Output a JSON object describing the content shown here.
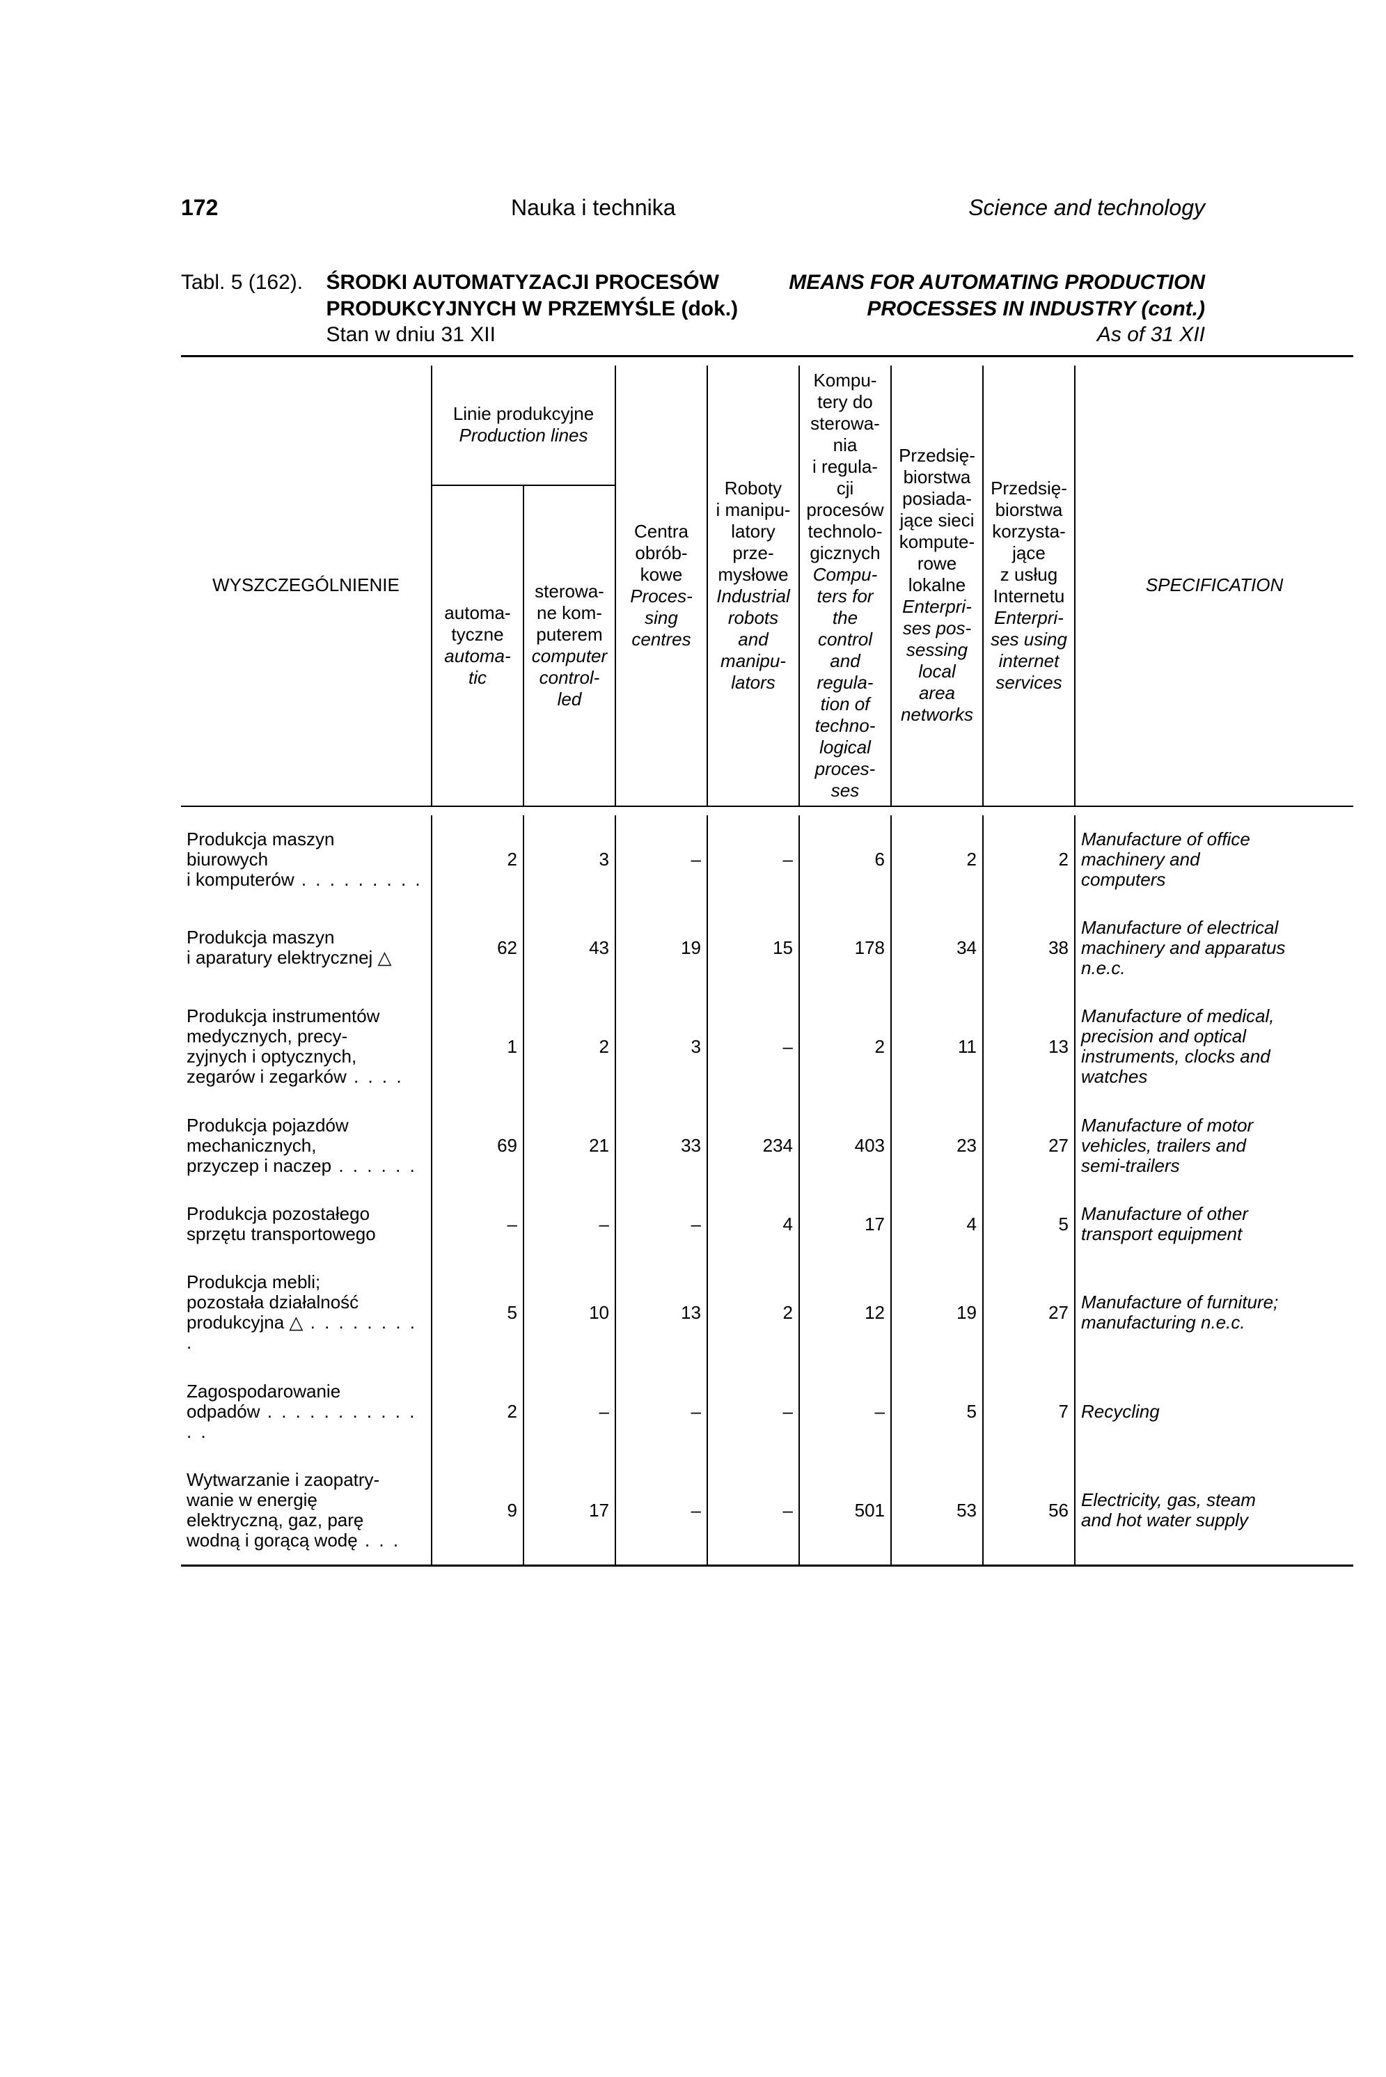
{
  "page": {
    "number": "172",
    "section_pl": "Nauka i technika",
    "section_en": "Science and technology"
  },
  "title": {
    "label": "Tabl. 5 (162).",
    "pl_line1": "ŚRODKI AUTOMATYZACJI PROCESÓW",
    "pl_line2": "PRODUKCYJNYCH W PRZEMYŚLE (dok.)",
    "pl_sub": "Stan w dniu 31 XII",
    "en_line1": "MEANS FOR AUTOMATING PRODUCTION",
    "en_line2": "PROCESSES IN INDUSTRY (cont.)",
    "en_sub": "As of 31 XII"
  },
  "headers": {
    "stub": "WYSZCZEGÓLNIENIE",
    "prod_lines_pl": "Linie produkcyjne",
    "prod_lines_en": "Production lines",
    "c1_pl": "automa-\ntyczne",
    "c1_en": "automa-\ntic",
    "c2_pl": "sterowa-\nne kom-\nputerem",
    "c2_en": "computer\ncontrol-\nled",
    "c3_pl": "Centra\nobrób-\nkowe",
    "c3_en": "Proces-\nsing\ncentres",
    "c4_pl": "Roboty\ni manipu-\nlatory\nprze-\nmysłowe",
    "c4_en": "Industrial\nrobots\nand\nmanipu-\nlators",
    "c5_pl": "Kompu-\ntery do\nsterowa-\nnia\ni regula-\ncji\nprocesów\ntechnolo-\ngicznych",
    "c5_en": "Compu-\nters for\nthe\ncontrol\nand\nregula-\ntion of\ntechno-\nlogical\nproces-\nses",
    "c6_pl": "Przedsię-\nbiorstwa\nposiada-\njące sieci\nkompute-\nrowe\nlokalne",
    "c6_en": "Enterpri-\nses pos-\nsessing\nlocal\narea\nnetworks",
    "c7_pl": "Przedsię-\nbiorstwa\nkorzysta-\njące\nz usług\nInternetu",
    "c7_en": "Enterpri-\nses using\ninternet\nservices",
    "spec": "SPECIFICATION"
  },
  "rows": [
    {
      "pl": "Produkcja maszyn\nbiurowych\ni komputerów",
      "dots": " . . . . . . . . .",
      "v": [
        "2",
        "3",
        "–",
        "–",
        "6",
        "2",
        "2"
      ],
      "en": "Manufacture of office\nmachinery and\ncomputers"
    },
    {
      "pl": "Produkcja maszyn\ni aparatury elektrycznej △",
      "dots": "",
      "v": [
        "62",
        "43",
        "19",
        "15",
        "178",
        "34",
        "38"
      ],
      "en": "Manufacture of electrical\nmachinery and apparatus\nn.e.c."
    },
    {
      "pl": "Produkcja instrumentów\nmedycznych, precy-\nzyjnych i optycznych,\nzegarów i zegarków",
      "dots": " . . . .",
      "v": [
        "1",
        "2",
        "3",
        "–",
        "2",
        "11",
        "13"
      ],
      "en": "Manufacture of medical,\nprecision and optical\ninstruments, clocks and\nwatches"
    },
    {
      "pl": "Produkcja pojazdów\nmechanicznych,\nprzyczep i naczep",
      "dots": " . . . . . .",
      "v": [
        "69",
        "21",
        "33",
        "234",
        "403",
        "23",
        "27"
      ],
      "en": "Manufacture of motor\nvehicles, trailers and\nsemi-trailers"
    },
    {
      "pl": "Produkcja pozostałego\nsprzętu transportowego",
      "dots": "",
      "v": [
        "–",
        "–",
        "–",
        "4",
        "17",
        "4",
        "5"
      ],
      "en": "Manufacture of other\ntransport equipment"
    },
    {
      "pl": "Produkcja mebli;\npozostała działalność\nprodukcyjna △",
      "dots": " . . . . . . . . .",
      "v": [
        "5",
        "10",
        "13",
        "2",
        "12",
        "19",
        "27"
      ],
      "en": "Manufacture of furniture;\nmanufacturing n.e.c."
    },
    {
      "pl": "Zagospodarowanie\nodpadów",
      "dots": " . . . . . . . . . . . . .",
      "v": [
        "2",
        "–",
        "–",
        "–",
        "–",
        "5",
        "7"
      ],
      "en": "Recycling"
    },
    {
      "pl": "Wytwarzanie i zaopatry-\nwanie w energię\nelektryczną, gaz, parę\nwodną i gorącą wodę",
      "dots": " . . .",
      "v": [
        "9",
        "17",
        "–",
        "–",
        "501",
        "53",
        "56"
      ],
      "en": "Electricity, gas, steam\nand hot water supply"
    }
  ]
}
